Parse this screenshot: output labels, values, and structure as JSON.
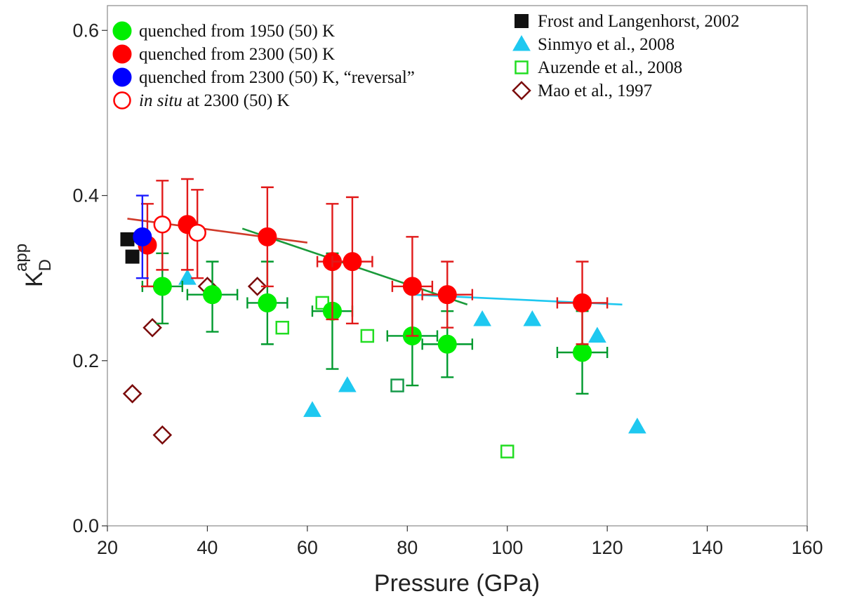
{
  "chart_data": {
    "type": "scatter",
    "xlabel": "Pressure (GPa)",
    "ylabel": {
      "base": "K",
      "sup": "app",
      "sub": "D"
    },
    "xlim": [
      20,
      160
    ],
    "ylim": [
      0.0,
      0.63
    ],
    "xticks": [
      "20",
      "40",
      "60",
      "80",
      "100",
      "120",
      "140",
      "160"
    ],
    "xtick_values": [
      20,
      40,
      60,
      80,
      100,
      120,
      140,
      160
    ],
    "yticks": [
      "0.0",
      "0.2",
      "0.4",
      "0.6"
    ],
    "ytick_values": [
      0.0,
      0.2,
      0.4,
      0.6
    ],
    "grid": false,
    "legend_left": [
      {
        "key": "q1950",
        "label": "quenched from 1950 (50) K"
      },
      {
        "key": "q2300",
        "label": "quenched from 2300 (50) K"
      },
      {
        "key": "qrev",
        "label": "quenched from 2300 (50) K, “reversal”"
      },
      {
        "key": "insitu",
        "label_italic": "in situ",
        "label_rest": " at 2300 (50) K"
      }
    ],
    "legend_right": [
      {
        "key": "frost",
        "label": "Frost and Langenhorst, 2002"
      },
      {
        "key": "sinmyo",
        "label": "Sinmyo et al., 2008"
      },
      {
        "key": "auzende",
        "label": "Auzende et al., 2008"
      },
      {
        "key": "mao",
        "label": "Mao et al., 1997"
      }
    ],
    "series": [
      {
        "key": "q1950",
        "marker": "circle",
        "color": "#00ee00",
        "fill": true,
        "err_color": "#009a2e",
        "points": [
          {
            "x": 31,
            "y": 0.29,
            "xerr": 4,
            "yerr": [
              0.045,
              0.04
            ]
          },
          {
            "x": 41,
            "y": 0.28,
            "xerr": 5,
            "yerr": [
              0.045,
              0.04
            ]
          },
          {
            "x": 52,
            "y": 0.27,
            "xerr": 4,
            "yerr": [
              0.05,
              0.05
            ]
          },
          {
            "x": 65,
            "y": 0.26,
            "xerr": 4,
            "yerr": [
              0.07,
              0.07
            ]
          },
          {
            "x": 81,
            "y": 0.23,
            "xerr": 5,
            "yerr": [
              0.06,
              0.06
            ]
          },
          {
            "x": 88,
            "y": 0.22,
            "xerr": 5,
            "yerr": [
              0.04,
              0.04
            ]
          },
          {
            "x": 115,
            "y": 0.21,
            "xerr": 5,
            "yerr": [
              0.05,
              0.05
            ]
          }
        ]
      },
      {
        "key": "q2300",
        "marker": "circle",
        "color": "#ff0000",
        "fill": true,
        "err_color": "#e11a1a",
        "points": [
          {
            "x": 28,
            "y": 0.34,
            "xerr": 0,
            "yerr": [
              0.05,
              0.05
            ]
          },
          {
            "x": 36,
            "y": 0.365,
            "xerr": 0,
            "yerr": [
              0.055,
              0.055
            ]
          },
          {
            "x": 52,
            "y": 0.35,
            "xerr": 0,
            "yerr": [
              0.06,
              0.06
            ]
          },
          {
            "x": 65,
            "y": 0.32,
            "xerr": 3,
            "yerr": [
              0.07,
              0.07
            ]
          },
          {
            "x": 69,
            "y": 0.32,
            "xerr": 4,
            "yerr": [
              0.075,
              0.078
            ]
          },
          {
            "x": 81,
            "y": 0.29,
            "xerr": 4,
            "yerr": [
              0.06,
              0.06
            ]
          },
          {
            "x": 88,
            "y": 0.28,
            "xerr": 5,
            "yerr": [
              0.04,
              0.04
            ]
          },
          {
            "x": 115,
            "y": 0.27,
            "xerr": 5,
            "yerr": [
              0.05,
              0.05
            ]
          }
        ]
      },
      {
        "key": "qrev",
        "marker": "circle",
        "color": "#0000ff",
        "fill": true,
        "err_color": "#1a1aff",
        "points": [
          {
            "x": 27,
            "y": 0.35,
            "xerr": 0,
            "yerr": [
              0.05,
              0.05
            ]
          }
        ]
      },
      {
        "key": "insitu",
        "marker": "circle",
        "color": "#ff0000",
        "fill": false,
        "err_color": "#e11a1a",
        "points": [
          {
            "x": 31,
            "y": 0.365,
            "xerr": 0,
            "yerr": [
              0.055,
              0.053
            ]
          },
          {
            "x": 38,
            "y": 0.355,
            "xerr": 0,
            "yerr": [
              0.055,
              0.052
            ]
          }
        ]
      },
      {
        "key": "frost",
        "marker": "square",
        "color": "#111111",
        "fill": true,
        "points": [
          {
            "x": 24,
            "y": 0.347
          },
          {
            "x": 25,
            "y": 0.326
          }
        ]
      },
      {
        "key": "sinmyo",
        "marker": "triangle",
        "color": "#1ec8f0",
        "fill": true,
        "points": [
          {
            "x": 36,
            "y": 0.3
          },
          {
            "x": 61,
            "y": 0.14
          },
          {
            "x": 68,
            "y": 0.17
          },
          {
            "x": 95,
            "y": 0.25
          },
          {
            "x": 105,
            "y": 0.25
          },
          {
            "x": 118,
            "y": 0.23
          },
          {
            "x": 126,
            "y": 0.12
          }
        ]
      },
      {
        "key": "auzende",
        "marker": "square",
        "color": "#22dd22",
        "fill": false,
        "points": [
          {
            "x": 55,
            "y": 0.24
          },
          {
            "x": 63,
            "y": 0.27
          },
          {
            "x": 72,
            "y": 0.23
          },
          {
            "x": 78,
            "y": 0.17,
            "color": "#169a4a"
          },
          {
            "x": 100,
            "y": 0.09
          }
        ]
      },
      {
        "key": "mao",
        "marker": "diamond",
        "color": "#7a0a0a",
        "fill": false,
        "points": [
          {
            "x": 25,
            "y": 0.16
          },
          {
            "x": 29,
            "y": 0.24
          },
          {
            "x": 31,
            "y": 0.11
          },
          {
            "x": 40,
            "y": 0.29
          },
          {
            "x": 50,
            "y": 0.29
          }
        ]
      }
    ],
    "fit_lines": [
      {
        "color": "#d03a2a",
        "x": [
          24,
          60
        ],
        "y": [
          0.372,
          0.343
        ]
      },
      {
        "color": "#1a9a3a",
        "x": [
          47,
          92
        ],
        "y": [
          0.36,
          0.268
        ]
      },
      {
        "color": "#1ec8f0",
        "x": [
          81,
          123
        ],
        "y": [
          0.28,
          0.268
        ]
      }
    ]
  }
}
